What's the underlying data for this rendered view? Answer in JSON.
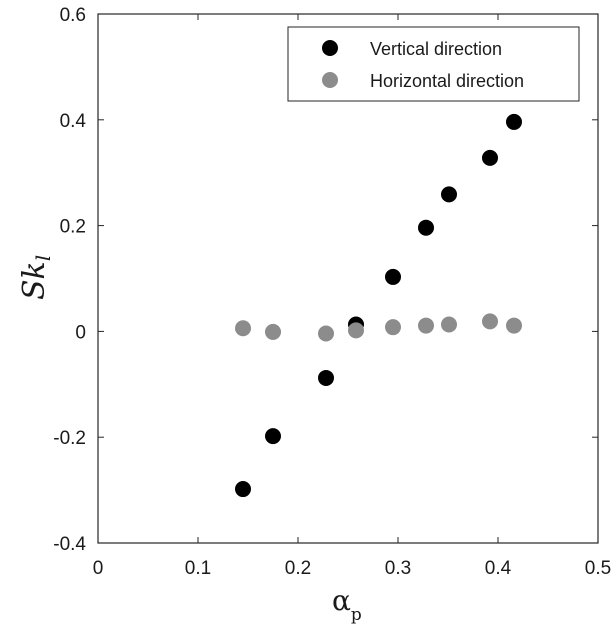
{
  "chart_data": {
    "type": "scatter",
    "xlabel": "α",
    "xlabel_sub": "p",
    "ylabel": "Sk",
    "ylabel_sub": "l",
    "xlim": [
      0,
      0.5
    ],
    "ylim": [
      -0.4,
      0.6
    ],
    "xticks": [
      0,
      0.1,
      0.2,
      0.3,
      0.4,
      0.5
    ],
    "xtick_labels": [
      "0",
      "0.1",
      "0.2",
      "0.3",
      "0.4",
      "0.5"
    ],
    "yticks": [
      -0.4,
      -0.2,
      0,
      0.2,
      0.4,
      0.6
    ],
    "ytick_labels": [
      "-0.4",
      "-0.2",
      "0",
      "0.2",
      "0.4",
      "0.6"
    ],
    "grid": false,
    "legend_position": "top-right",
    "series": [
      {
        "name": "Vertical direction",
        "color": "#000000",
        "x": [
          0.145,
          0.175,
          0.228,
          0.258,
          0.295,
          0.328,
          0.351,
          0.392,
          0.416
        ],
        "y": [
          -0.298,
          -0.198,
          -0.088,
          0.013,
          0.103,
          0.196,
          0.259,
          0.328,
          0.396
        ]
      },
      {
        "name": "Horizontal direction",
        "color": "#8c8c8c",
        "x": [
          0.145,
          0.175,
          0.228,
          0.258,
          0.295,
          0.328,
          0.351,
          0.392,
          0.416
        ],
        "y": [
          0.006,
          -0.001,
          -0.004,
          0.002,
          0.008,
          0.011,
          0.013,
          0.019,
          0.011
        ]
      }
    ]
  }
}
